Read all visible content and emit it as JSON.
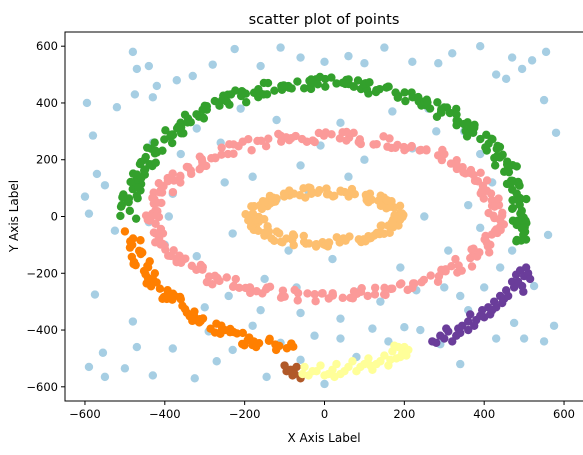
{
  "chart_data": {
    "type": "scatter",
    "title": "scatter plot of points",
    "xlabel": "X Axis Label",
    "ylabel": "Y Axis Label",
    "xlim": [
      -650,
      650
    ],
    "ylim": [
      -650,
      650
    ],
    "xticks": [
      -600,
      -400,
      -200,
      0,
      200,
      400,
      600
    ],
    "yticks": [
      -600,
      -400,
      -200,
      0,
      200,
      400,
      600
    ],
    "grid": false,
    "legend": "none",
    "series": [
      {
        "color": "#a6cee3",
        "points": [
          [
            -595,
            400
          ],
          [
            -580,
            285
          ],
          [
            -600,
            70
          ],
          [
            -575,
            -275
          ],
          [
            -590,
            -530
          ],
          [
            -555,
            -480
          ],
          [
            -550,
            -565
          ],
          [
            -500,
            -535
          ],
          [
            -480,
            -370
          ],
          [
            -470,
            -460
          ],
          [
            -430,
            -560
          ],
          [
            -380,
            -465
          ],
          [
            -325,
            -570
          ],
          [
            -290,
            -405
          ],
          [
            -270,
            -510
          ],
          [
            -230,
            -470
          ],
          [
            -180,
            -385
          ],
          [
            -145,
            -565
          ],
          [
            -110,
            -445
          ],
          [
            -60,
            -505
          ],
          [
            -25,
            -420
          ],
          [
            0,
            -590
          ],
          [
            40,
            -430
          ],
          [
            80,
            -495
          ],
          [
            120,
            -395
          ],
          [
            160,
            -440
          ],
          [
            200,
            -390
          ],
          [
            240,
            -400
          ],
          [
            290,
            -450
          ],
          [
            340,
            -520
          ],
          [
            360,
            -330
          ],
          [
            430,
            -430
          ],
          [
            475,
            -375
          ],
          [
            500,
            -430
          ],
          [
            550,
            -440
          ],
          [
            575,
            -385
          ],
          [
            525,
            -245
          ],
          [
            560,
            -65
          ],
          [
            580,
            295
          ],
          [
            550,
            410
          ],
          [
            520,
            550
          ],
          [
            555,
            580
          ],
          [
            495,
            520
          ],
          [
            455,
            485
          ],
          [
            470,
            560
          ],
          [
            430,
            500
          ],
          [
            390,
            600
          ],
          [
            320,
            575
          ],
          [
            285,
            540
          ],
          [
            220,
            545
          ],
          [
            150,
            595
          ],
          [
            100,
            540
          ],
          [
            60,
            565
          ],
          [
            0,
            545
          ],
          [
            -60,
            560
          ],
          [
            -110,
            595
          ],
          [
            -160,
            530
          ],
          [
            -225,
            590
          ],
          [
            -280,
            535
          ],
          [
            -330,
            495
          ],
          [
            -370,
            480
          ],
          [
            -430,
            420
          ],
          [
            -475,
            430
          ],
          [
            -520,
            385
          ],
          [
            -570,
            150
          ],
          [
            -525,
            -50
          ],
          [
            -550,
            110
          ],
          [
            -480,
            580
          ],
          [
            -470,
            520
          ],
          [
            -440,
            530
          ],
          [
            -420,
            460
          ],
          [
            -590,
            10
          ],
          [
            -440,
            -20
          ],
          [
            -390,
            0
          ],
          [
            -360,
            220
          ],
          [
            -320,
            310
          ],
          [
            -300,
            180
          ],
          [
            -260,
            260
          ],
          [
            -230,
            -60
          ],
          [
            -180,
            140
          ],
          [
            -150,
            -220
          ],
          [
            -120,
            60
          ],
          [
            -90,
            -120
          ],
          [
            -60,
            180
          ],
          [
            -40,
            90
          ],
          [
            -10,
            250
          ],
          [
            20,
            -150
          ],
          [
            60,
            140
          ],
          [
            100,
            200
          ],
          [
            130,
            -60
          ],
          [
            150,
            60
          ],
          [
            190,
            -180
          ],
          [
            220,
            240
          ],
          [
            250,
            0
          ],
          [
            280,
            300
          ],
          [
            310,
            -120
          ],
          [
            330,
            180
          ],
          [
            360,
            40
          ],
          [
            390,
            -40
          ],
          [
            420,
            120
          ],
          [
            440,
            -180
          ],
          [
            470,
            -120
          ],
          [
            -320,
            -140
          ],
          [
            -300,
            -320
          ],
          [
            -240,
            -280
          ],
          [
            -160,
            -330
          ],
          [
            -60,
            -340
          ],
          [
            40,
            -360
          ],
          [
            140,
            -300
          ],
          [
            230,
            -260
          ],
          [
            300,
            -250
          ],
          [
            340,
            -280
          ],
          [
            400,
            -250
          ],
          [
            -400,
            -100
          ],
          [
            -380,
            80
          ],
          [
            -430,
            260
          ],
          [
            -210,
            380
          ],
          [
            -120,
            340
          ],
          [
            40,
            330
          ],
          [
            170,
            370
          ],
          [
            260,
            380
          ],
          [
            350,
            300
          ],
          [
            390,
            220
          ],
          [
            -250,
            120
          ],
          [
            -70,
            -250
          ],
          [
            90,
            -260
          ]
        ]
      },
      {
        "color": "#33a02c",
        "ring": {
          "cx": 0,
          "cy": 0,
          "rx": 490,
          "ry": 470,
          "from_deg": 180,
          "to_deg": -12,
          "spread": 22,
          "count": 230
        }
      },
      {
        "color": "#fb9a99",
        "ring": {
          "cx": 0,
          "cy": 0,
          "rx": 430,
          "ry": 280,
          "from_deg": 0,
          "to_deg": 360,
          "spread": 20,
          "count": 260
        }
      },
      {
        "color": "#fdbf6f",
        "ring": {
          "cx": 0,
          "cy": 0,
          "rx": 180,
          "ry": 88,
          "from_deg": 0,
          "to_deg": 360,
          "spread": 20,
          "count": 150
        }
      },
      {
        "color": "#ff7f00",
        "ring": {
          "cx": 0,
          "cy": 0,
          "rx": 490,
          "ry": 470,
          "from_deg": 188,
          "to_deg": 261,
          "spread": 22,
          "count": 80
        }
      },
      {
        "color": "#b15928",
        "points": [
          [
            -95,
            -545
          ],
          [
            -80,
            -560
          ],
          [
            -70,
            -530
          ],
          [
            -60,
            -570
          ],
          [
            -100,
            -525
          ],
          [
            -85,
            -540
          ],
          [
            -75,
            -555
          ]
        ]
      },
      {
        "color": "#ffff99",
        "points": [
          [
            -40,
            -560
          ],
          [
            -20,
            -545
          ],
          [
            0,
            -560
          ],
          [
            20,
            -540
          ],
          [
            40,
            -555
          ],
          [
            60,
            -530
          ],
          [
            80,
            -545
          ],
          [
            100,
            -520
          ],
          [
            120,
            -540
          ],
          [
            140,
            -510
          ],
          [
            160,
            -525
          ],
          [
            180,
            -500
          ],
          [
            195,
            -480
          ],
          [
            200,
            -460
          ],
          [
            210,
            -470
          ],
          [
            190,
            -495
          ],
          [
            -50,
            -530
          ],
          [
            -10,
            -525
          ],
          [
            30,
            -520
          ],
          [
            70,
            -510
          ],
          [
            110,
            -500
          ],
          [
            150,
            -490
          ],
          [
            170,
            -475
          ],
          [
            185,
            -460
          ],
          [
            -30,
            -545
          ],
          [
            10,
            -555
          ],
          [
            50,
            -545
          ],
          [
            90,
            -530
          ],
          [
            130,
            -520
          ],
          [
            165,
            -505
          ],
          [
            205,
            -490
          ],
          [
            175,
            -455
          ],
          [
            -55,
            -555
          ],
          [
            25,
            -565
          ],
          [
            115,
            -525
          ]
        ]
      },
      {
        "color": "#6a3d9a",
        "points": [
          [
            290,
            -420
          ],
          [
            310,
            -405
          ],
          [
            330,
            -420
          ],
          [
            345,
            -385
          ],
          [
            360,
            -370
          ],
          [
            380,
            -365
          ],
          [
            395,
            -330
          ],
          [
            410,
            -320
          ],
          [
            425,
            -300
          ],
          [
            440,
            -280
          ],
          [
            455,
            -260
          ],
          [
            470,
            -230
          ],
          [
            480,
            -205
          ],
          [
            490,
            -190
          ],
          [
            500,
            -210
          ],
          [
            495,
            -245
          ],
          [
            505,
            -180
          ],
          [
            510,
            -200
          ],
          [
            475,
            -250
          ],
          [
            450,
            -290
          ],
          [
            430,
            -320
          ],
          [
            415,
            -345
          ],
          [
            400,
            -355
          ],
          [
            375,
            -385
          ],
          [
            360,
            -400
          ],
          [
            340,
            -410
          ],
          [
            320,
            -440
          ],
          [
            300,
            -430
          ],
          [
            280,
            -445
          ],
          [
            270,
            -440
          ],
          [
            305,
            -395
          ],
          [
            335,
            -395
          ],
          [
            365,
            -345
          ],
          [
            390,
            -350
          ],
          [
            420,
            -330
          ],
          [
            445,
            -305
          ],
          [
            460,
            -280
          ],
          [
            485,
            -230
          ],
          [
            515,
            -220
          ],
          [
            498,
            -265
          ]
        ]
      }
    ]
  }
}
